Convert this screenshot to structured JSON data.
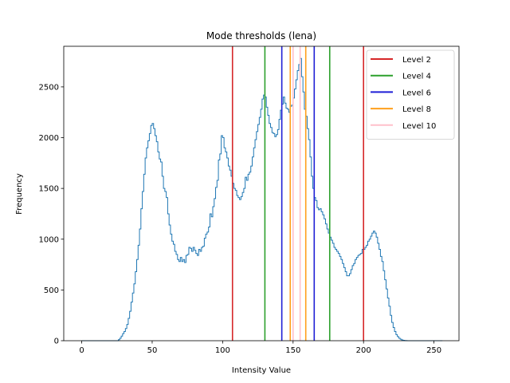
{
  "chart_data": {
    "type": "histogram",
    "title": "Mode thresholds (lena)",
    "xlabel": "Intensity Value",
    "ylabel": "Frequency",
    "xlim": [
      -12.75,
      267.75
    ],
    "ylim": [
      0,
      2900
    ],
    "xticks": [
      0,
      50,
      100,
      150,
      200,
      250
    ],
    "yticks": [
      0,
      500,
      1000,
      1500,
      2000,
      2500
    ],
    "histogram_color": "#1f77b4",
    "histogram": [
      [
        0,
        0
      ],
      [
        25,
        0
      ],
      [
        26,
        10
      ],
      [
        27,
        25
      ],
      [
        28,
        45
      ],
      [
        29,
        70
      ],
      [
        30,
        90
      ],
      [
        31,
        120
      ],
      [
        32,
        160
      ],
      [
        33,
        220
      ],
      [
        34,
        290
      ],
      [
        35,
        380
      ],
      [
        36,
        470
      ],
      [
        37,
        560
      ],
      [
        38,
        680
      ],
      [
        39,
        800
      ],
      [
        40,
        940
      ],
      [
        41,
        1100
      ],
      [
        42,
        1300
      ],
      [
        43,
        1470
      ],
      [
        44,
        1640
      ],
      [
        45,
        1800
      ],
      [
        46,
        1900
      ],
      [
        47,
        1970
      ],
      [
        48,
        2040
      ],
      [
        49,
        2120
      ],
      [
        50,
        2140
      ],
      [
        51,
        2090
      ],
      [
        52,
        2020
      ],
      [
        53,
        1960
      ],
      [
        54,
        1860
      ],
      [
        55,
        1790
      ],
      [
        56,
        1760
      ],
      [
        57,
        1620
      ],
      [
        58,
        1500
      ],
      [
        59,
        1470
      ],
      [
        60,
        1410
      ],
      [
        61,
        1250
      ],
      [
        62,
        1140
      ],
      [
        63,
        1050
      ],
      [
        64,
        980
      ],
      [
        65,
        950
      ],
      [
        66,
        880
      ],
      [
        67,
        850
      ],
      [
        68,
        800
      ],
      [
        69,
        780
      ],
      [
        70,
        820
      ],
      [
        71,
        780
      ],
      [
        72,
        800
      ],
      [
        73,
        770
      ],
      [
        74,
        840
      ],
      [
        75,
        850
      ],
      [
        76,
        920
      ],
      [
        77,
        910
      ],
      [
        78,
        880
      ],
      [
        79,
        920
      ],
      [
        80,
        890
      ],
      [
        81,
        860
      ],
      [
        82,
        840
      ],
      [
        83,
        900
      ],
      [
        84,
        880
      ],
      [
        85,
        920
      ],
      [
        86,
        930
      ],
      [
        87,
        1010
      ],
      [
        88,
        1050
      ],
      [
        89,
        1070
      ],
      [
        90,
        1120
      ],
      [
        91,
        1250
      ],
      [
        92,
        1220
      ],
      [
        93,
        1320
      ],
      [
        94,
        1400
      ],
      [
        95,
        1510
      ],
      [
        96,
        1580
      ],
      [
        97,
        1780
      ],
      [
        98,
        1840
      ],
      [
        99,
        2020
      ],
      [
        100,
        2000
      ],
      [
        101,
        1900
      ],
      [
        102,
        1860
      ],
      [
        103,
        1800
      ],
      [
        104,
        1720
      ],
      [
        105,
        1680
      ],
      [
        106,
        1620
      ],
      [
        107,
        1550
      ],
      [
        108,
        1500
      ],
      [
        109,
        1480
      ],
      [
        110,
        1430
      ],
      [
        111,
        1410
      ],
      [
        112,
        1390
      ],
      [
        113,
        1420
      ],
      [
        114,
        1460
      ],
      [
        115,
        1500
      ],
      [
        116,
        1610
      ],
      [
        117,
        1580
      ],
      [
        118,
        1640
      ],
      [
        119,
        1660
      ],
      [
        120,
        1720
      ],
      [
        121,
        1810
      ],
      [
        122,
        1900
      ],
      [
        123,
        1980
      ],
      [
        124,
        2060
      ],
      [
        125,
        2130
      ],
      [
        126,
        2200
      ],
      [
        127,
        2280
      ],
      [
        128,
        2380
      ],
      [
        129,
        2420
      ],
      [
        130,
        2400
      ],
      [
        131,
        2300
      ],
      [
        132,
        2220
      ],
      [
        133,
        2140
      ],
      [
        134,
        2100
      ],
      [
        135,
        2050
      ],
      [
        136,
        2040
      ],
      [
        137,
        2010
      ],
      [
        138,
        2030
      ],
      [
        139,
        2080
      ],
      [
        140,
        2180
      ],
      [
        141,
        2270
      ],
      [
        142,
        2330
      ],
      [
        143,
        2400
      ],
      [
        144,
        2340
      ],
      [
        145,
        2290
      ],
      [
        146,
        2280
      ],
      [
        147,
        2250
      ],
      [
        148,
        2310
      ],
      [
        149,
        2320
      ],
      [
        150,
        2390
      ],
      [
        151,
        2480
      ],
      [
        152,
        2570
      ],
      [
        153,
        2660
      ],
      [
        154,
        2720
      ],
      [
        155,
        2780
      ],
      [
        156,
        2600
      ],
      [
        157,
        2450
      ],
      [
        158,
        2280
      ],
      [
        159,
        2210
      ],
      [
        160,
        2090
      ],
      [
        161,
        1980
      ],
      [
        162,
        1810
      ],
      [
        163,
        1620
      ],
      [
        164,
        1500
      ],
      [
        165,
        1410
      ],
      [
        166,
        1380
      ],
      [
        167,
        1310
      ],
      [
        168,
        1290
      ],
      [
        169,
        1300
      ],
      [
        170,
        1270
      ],
      [
        171,
        1240
      ],
      [
        172,
        1200
      ],
      [
        173,
        1150
      ],
      [
        174,
        1100
      ],
      [
        175,
        1060
      ],
      [
        176,
        1020
      ],
      [
        177,
        990
      ],
      [
        178,
        960
      ],
      [
        179,
        920
      ],
      [
        180,
        900
      ],
      [
        181,
        880
      ],
      [
        182,
        860
      ],
      [
        183,
        830
      ],
      [
        184,
        800
      ],
      [
        185,
        760
      ],
      [
        186,
        720
      ],
      [
        187,
        680
      ],
      [
        188,
        640
      ],
      [
        189,
        640
      ],
      [
        190,
        660
      ],
      [
        191,
        700
      ],
      [
        192,
        740
      ],
      [
        193,
        760
      ],
      [
        194,
        800
      ],
      [
        195,
        820
      ],
      [
        196,
        840
      ],
      [
        197,
        850
      ],
      [
        198,
        860
      ],
      [
        199,
        900
      ],
      [
        200,
        900
      ],
      [
        201,
        920
      ],
      [
        202,
        940
      ],
      [
        203,
        980
      ],
      [
        204,
        1000
      ],
      [
        205,
        1030
      ],
      [
        206,
        1060
      ],
      [
        207,
        1080
      ],
      [
        208,
        1060
      ],
      [
        209,
        1020
      ],
      [
        210,
        960
      ],
      [
        211,
        900
      ],
      [
        212,
        830
      ],
      [
        213,
        780
      ],
      [
        214,
        690
      ],
      [
        215,
        600
      ],
      [
        216,
        510
      ],
      [
        217,
        420
      ],
      [
        218,
        340
      ],
      [
        219,
        250
      ],
      [
        220,
        180
      ],
      [
        221,
        130
      ],
      [
        222,
        90
      ],
      [
        223,
        60
      ],
      [
        224,
        40
      ],
      [
        225,
        25
      ],
      [
        226,
        15
      ],
      [
        227,
        8
      ],
      [
        228,
        4
      ],
      [
        229,
        2
      ],
      [
        230,
        1
      ],
      [
        231,
        0
      ],
      [
        255,
        0
      ]
    ],
    "threshold_lines": [
      {
        "name": "Level 2",
        "color": "#d62728",
        "x": [
          107,
          200
        ]
      },
      {
        "name": "Level 4",
        "color": "#2ca02c",
        "x": [
          130,
          176
        ]
      },
      {
        "name": "Level 6",
        "color": "#1f1fd6",
        "x": [
          142,
          165
        ]
      },
      {
        "name": "Level 8",
        "color": "#ff9f1c",
        "x": [
          148,
          159
        ]
      },
      {
        "name": "Level 10",
        "color": "#ffc0cb",
        "x": [
          150,
          155
        ]
      }
    ],
    "legend": {
      "position": "top-right",
      "items": [
        {
          "label": "Level 2",
          "color": "#d62728"
        },
        {
          "label": "Level 4",
          "color": "#2ca02c"
        },
        {
          "label": "Level 6",
          "color": "#1f1fd6"
        },
        {
          "label": "Level 8",
          "color": "#ff9f1c"
        },
        {
          "label": "Level 10",
          "color": "#ffc0cb"
        }
      ]
    }
  }
}
